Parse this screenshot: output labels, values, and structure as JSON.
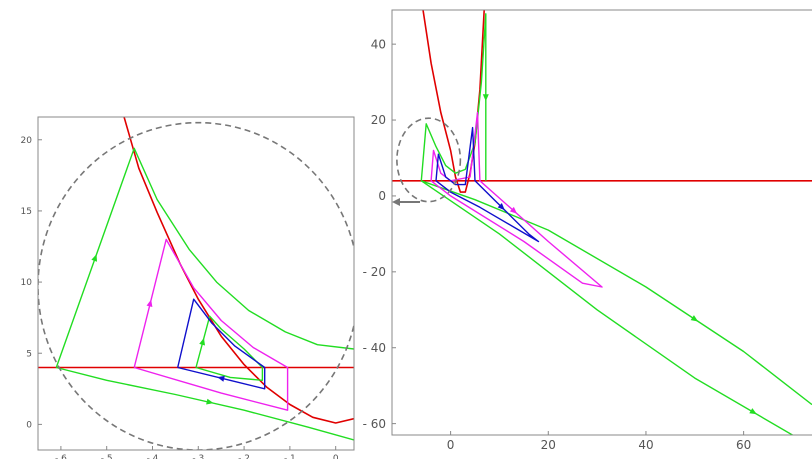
{
  "figure": {
    "colors": {
      "red": "#e00000",
      "green": "#22dd22",
      "magenta": "#ee22ee",
      "blue": "#1010cc",
      "dashed": "#777777",
      "frame": "#888888",
      "tick_text": "#555555"
    }
  },
  "chart_data": [
    {
      "type": "line",
      "panel": "left",
      "xlim": [
        -6.5,
        0.4
      ],
      "ylim": [
        -1.8,
        21.6
      ],
      "x_ticks": [
        -6,
        -5,
        -4,
        -3,
        -2,
        -1,
        0
      ],
      "x_tick_labels": [
        "- 6",
        "- 5",
        "- 4",
        "- 3",
        "- 2",
        "- 1",
        "0"
      ],
      "y_ticks": [
        0,
        5,
        10,
        15,
        20
      ],
      "y_tick_labels": [
        "0",
        "5",
        "10",
        "15",
        "20"
      ],
      "grid": false,
      "series": [
        {
          "color": "red",
          "points": [
            [
              -4.7,
              22.5
            ],
            [
              -4.3,
              18
            ],
            [
              -3.9,
              14.9
            ],
            [
              -3.4,
              11.3
            ],
            [
              -3.0,
              8.8
            ],
            [
              -2.5,
              6.2
            ],
            [
              -2.0,
              4.2
            ],
            [
              -1.5,
              2.6
            ],
            [
              -1.0,
              1.4
            ],
            [
              -0.5,
              0.5
            ],
            [
              0.0,
              0.1
            ],
            [
              0.4,
              0.4
            ]
          ]
        },
        {
          "color": "red",
          "points": [
            [
              -6.5,
              4.0
            ],
            [
              0.4,
              4.0
            ]
          ]
        },
        {
          "color": "green",
          "points": [
            [
              -6.1,
              4.0
            ],
            [
              -4.4,
              19.4
            ],
            [
              -3.9,
              15.8
            ],
            [
              -3.2,
              12.3
            ],
            [
              -2.6,
              10.0
            ],
            [
              -1.9,
              8.0
            ],
            [
              -1.1,
              6.5
            ],
            [
              -0.4,
              5.6
            ],
            [
              0.4,
              5.3
            ]
          ]
        },
        {
          "color": "green",
          "points": [
            [
              -6.1,
              4.0
            ],
            [
              -5.0,
              3.1
            ],
            [
              -3.5,
              2.1
            ],
            [
              -2.0,
              1.0
            ],
            [
              -0.6,
              -0.2
            ],
            [
              0.4,
              -1.1
            ]
          ]
        },
        {
          "color": "green",
          "points": [
            [
              -3.05,
              4.0
            ],
            [
              -2.75,
              7.6
            ],
            [
              -2.5,
              6.7
            ],
            [
              -2.0,
              5.3
            ],
            [
              -1.6,
              4.0
            ],
            [
              -1.6,
              3.1
            ],
            [
              -2.3,
              3.3
            ],
            [
              -3.05,
              4.0
            ]
          ]
        },
        {
          "color": "magenta",
          "points": [
            [
              -4.4,
              4.0
            ],
            [
              -3.7,
              13.0
            ],
            [
              -3.1,
              9.6
            ],
            [
              -2.5,
              7.3
            ],
            [
              -1.8,
              5.4
            ],
            [
              -1.05,
              4.0
            ],
            [
              -1.05,
              1.0
            ],
            [
              -2.5,
              2.2
            ],
            [
              -4.4,
              4.0
            ]
          ]
        },
        {
          "color": "blue",
          "points": [
            [
              -3.45,
              4.0
            ],
            [
              -3.1,
              8.8
            ],
            [
              -2.7,
              7.1
            ],
            [
              -2.2,
              5.5
            ],
            [
              -1.55,
              4.0
            ],
            [
              -1.55,
              2.5
            ],
            [
              -3.45,
              4.0
            ]
          ]
        },
        {
          "color": "dashed",
          "shape": "circle",
          "center": [
            -3.0,
            9.7
          ],
          "radius_units_x": 3.5,
          "radius_units_y": 11.5
        }
      ]
    },
    {
      "type": "line",
      "panel": "right",
      "xlim": [
        -12,
        74
      ],
      "ylim": [
        -63,
        49
      ],
      "x_ticks": [
        0,
        20,
        40,
        60
      ],
      "x_tick_labels": [
        "0",
        "20",
        "40",
        "60"
      ],
      "y_ticks": [
        -60,
        -40,
        -20,
        0,
        20,
        40
      ],
      "y_tick_labels": [
        "- 60",
        "- 40",
        "- 20",
        "0",
        "20",
        "40"
      ],
      "grid": false,
      "series": [
        {
          "color": "red",
          "points": [
            [
              -6,
              52
            ],
            [
              -4,
              35
            ],
            [
              -2,
              22
            ],
            [
              0,
              12
            ],
            [
              1,
              5
            ],
            [
              2,
              1
            ],
            [
              3,
              1
            ],
            [
              4,
              6
            ],
            [
              5,
              14
            ],
            [
              6,
              28
            ],
            [
              7,
              52
            ]
          ]
        },
        {
          "color": "red",
          "points": [
            [
              -12,
              4
            ],
            [
              74,
              4
            ]
          ]
        },
        {
          "color": "green",
          "points": [
            [
              -6,
              4
            ],
            [
              -5,
              19
            ],
            [
              -3,
              13
            ],
            [
              -1,
              8
            ],
            [
              1,
              6
            ],
            [
              3,
              7
            ],
            [
              5,
              14
            ],
            [
              6.3,
              30
            ],
            [
              7.2,
              48
            ],
            [
              7.2,
              4
            ]
          ]
        },
        {
          "color": "green",
          "points": [
            [
              -6,
              4
            ],
            [
              5,
              -1
            ],
            [
              20,
              -9
            ],
            [
              40,
              -24
            ],
            [
              60,
              -41
            ],
            [
              74,
              -55
            ]
          ]
        },
        {
          "color": "green",
          "points": [
            [
              -6,
              4
            ],
            [
              10,
              -10
            ],
            [
              30,
              -30
            ],
            [
              50,
              -48
            ],
            [
              74,
              -66
            ]
          ]
        },
        {
          "color": "magenta",
          "points": [
            [
              -4,
              4
            ],
            [
              -3.5,
              12
            ],
            [
              -2,
              6
            ],
            [
              0,
              4
            ],
            [
              4,
              5
            ],
            [
              5.5,
              22
            ],
            [
              6,
              4
            ],
            [
              20,
              -12
            ],
            [
              31,
              -24
            ],
            [
              27,
              -23
            ],
            [
              15,
              -12
            ],
            [
              0,
              0
            ],
            [
              -4,
              4
            ]
          ]
        },
        {
          "color": "blue",
          "points": [
            [
              -3,
              4
            ],
            [
              -2.5,
              11
            ],
            [
              -1,
              5
            ],
            [
              1,
              3
            ],
            [
              3,
              3
            ],
            [
              4.5,
              18
            ],
            [
              5,
              4
            ],
            [
              16,
              -10
            ],
            [
              18,
              -12
            ],
            [
              14,
              -9
            ],
            [
              6,
              -3
            ],
            [
              0,
              1
            ],
            [
              -3,
              4
            ]
          ]
        },
        {
          "color": "dashed",
          "shape": "circle",
          "center": [
            -4.5,
            9.5
          ],
          "radius_units_x": 6.5,
          "radius_units_y": 11
        }
      ]
    }
  ]
}
